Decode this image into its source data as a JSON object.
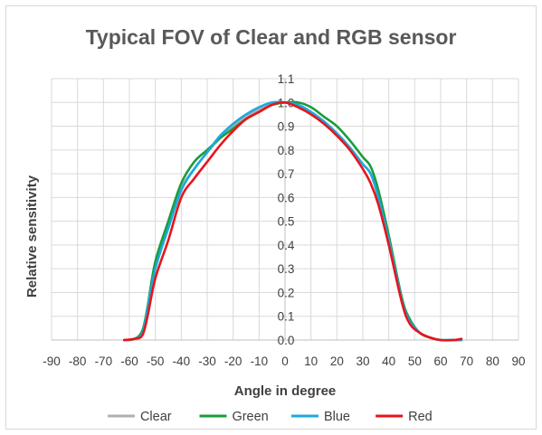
{
  "chart_data": {
    "type": "line",
    "title": "Typical FOV of Clear and RGB sensor",
    "xlabel": "Angle in degree",
    "ylabel": "Relative sensitivity",
    "xlim": [
      -90,
      90
    ],
    "ylim": [
      0,
      1.1
    ],
    "x_ticks": [
      "-90",
      "-80",
      "-70",
      "-60",
      "-50",
      "-40",
      "-30",
      "-20",
      "-10",
      "0",
      "10",
      "20",
      "30",
      "40",
      "50",
      "60",
      "70",
      "80",
      "90"
    ],
    "y_ticks": [
      "0.0",
      "0.1",
      "0.2",
      "0.3",
      "0.4",
      "0.5",
      "0.6",
      "0.7",
      "0.8",
      "0.9",
      "1.0",
      "1.1"
    ],
    "grid": true,
    "legend_position": "bottom",
    "series": [
      {
        "name": "Clear",
        "color": "#b0b0b0",
        "x": [
          -62,
          -58,
          -55,
          -53,
          -50,
          -45,
          -40,
          -35,
          -30,
          -25,
          -20,
          -15,
          -10,
          -5,
          0,
          5,
          10,
          15,
          20,
          25,
          30,
          33,
          36,
          40,
          45,
          48,
          52,
          56,
          60,
          65,
          68
        ],
        "y": [
          0,
          0.005,
          0.03,
          0.12,
          0.3,
          0.48,
          0.64,
          0.72,
          0.79,
          0.85,
          0.9,
          0.94,
          0.97,
          0.99,
          1.0,
          0.99,
          0.96,
          0.92,
          0.87,
          0.81,
          0.74,
          0.7,
          0.6,
          0.42,
          0.17,
          0.08,
          0.03,
          0.01,
          0,
          0,
          0
        ]
      },
      {
        "name": "Green",
        "color": "#1a9c3c",
        "x": [
          -62,
          -58,
          -55,
          -53,
          -50,
          -45,
          -40,
          -35,
          -30,
          -25,
          -20,
          -15,
          -10,
          -5,
          0,
          5,
          10,
          15,
          20,
          25,
          30,
          33,
          36,
          40,
          45,
          48,
          52,
          56,
          60,
          65,
          68
        ],
        "y": [
          0,
          0.005,
          0.04,
          0.14,
          0.33,
          0.5,
          0.66,
          0.75,
          0.8,
          0.85,
          0.89,
          0.93,
          0.96,
          0.99,
          1.0,
          1.0,
          0.98,
          0.94,
          0.9,
          0.84,
          0.77,
          0.73,
          0.63,
          0.44,
          0.18,
          0.09,
          0.03,
          0.01,
          0,
          0,
          0
        ]
      },
      {
        "name": "Blue",
        "color": "#1ba9e0",
        "x": [
          -62,
          -58,
          -55,
          -53,
          -50,
          -45,
          -40,
          -35,
          -30,
          -25,
          -20,
          -15,
          -10,
          -5,
          0,
          5,
          10,
          15,
          20,
          25,
          30,
          33,
          36,
          40,
          45,
          48,
          52,
          56,
          60,
          65,
          68
        ],
        "y": [
          0,
          0.005,
          0.03,
          0.13,
          0.3,
          0.47,
          0.63,
          0.72,
          0.79,
          0.86,
          0.91,
          0.95,
          0.98,
          1.0,
          1.0,
          0.99,
          0.96,
          0.92,
          0.87,
          0.81,
          0.74,
          0.7,
          0.6,
          0.42,
          0.17,
          0.08,
          0.03,
          0.01,
          0,
          0,
          0
        ]
      },
      {
        "name": "Red",
        "color": "#e8141b",
        "x": [
          -62,
          -58,
          -55,
          -53,
          -50,
          -45,
          -40,
          -35,
          -30,
          -25,
          -20,
          -15,
          -10,
          -5,
          0,
          5,
          10,
          15,
          20,
          25,
          30,
          33,
          36,
          40,
          45,
          48,
          52,
          56,
          60,
          65,
          68
        ],
        "y": [
          0,
          0.005,
          0.02,
          0.1,
          0.26,
          0.42,
          0.6,
          0.68,
          0.75,
          0.82,
          0.88,
          0.93,
          0.96,
          0.99,
          1.0,
          0.98,
          0.95,
          0.91,
          0.86,
          0.8,
          0.72,
          0.66,
          0.57,
          0.4,
          0.16,
          0.07,
          0.03,
          0.01,
          0,
          0,
          0.005
        ]
      }
    ]
  }
}
